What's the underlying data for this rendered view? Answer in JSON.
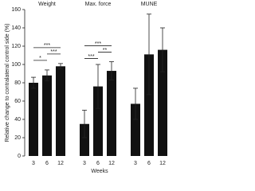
{
  "chart_data": {
    "type": "bar",
    "color": "#111111",
    "y_label": "Relative change to contralateral control side (%)",
    "x_label": "Weeks",
    "ylim": [
      0,
      160
    ],
    "yticks": [
      0,
      20,
      40,
      60,
      80,
      100,
      120,
      140,
      160
    ],
    "panels": [
      {
        "title": "Weight",
        "categories": [
          "3",
          "6",
          "12"
        ],
        "values": [
          80,
          88,
          98
        ],
        "errors": [
          6,
          6,
          3
        ],
        "annotations": [
          {
            "text": "*",
            "from": "3",
            "to": "6"
          },
          {
            "text": "***",
            "from": "6",
            "to": "12"
          },
          {
            "text": "***",
            "from": "3",
            "to": "12"
          }
        ]
      },
      {
        "title": "Max. force",
        "categories": [
          "3",
          "6",
          "12"
        ],
        "values": [
          35,
          76,
          93
        ],
        "errors": [
          15,
          24,
          10
        ],
        "annotations": [
          {
            "text": "***",
            "from": "3",
            "to": "6"
          },
          {
            "text": "**",
            "from": "6",
            "to": "12"
          },
          {
            "text": "***",
            "from": "3",
            "to": "12"
          }
        ]
      },
      {
        "title": "MUNE",
        "categories": [
          "3",
          "6",
          "12"
        ],
        "values": [
          57,
          111,
          116
        ],
        "errors": [
          17,
          44,
          24
        ],
        "annotations": []
      }
    ]
  }
}
